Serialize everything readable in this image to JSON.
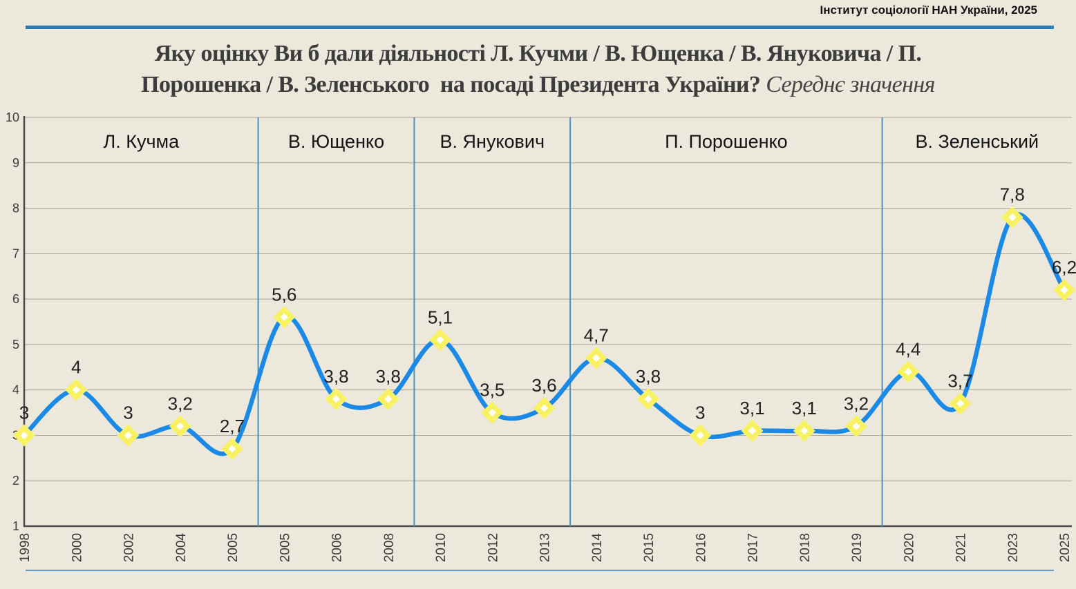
{
  "source": "Інститут соціології НАН України, 2025",
  "title": {
    "line1": "Яку оцінку Ви б дали діяльності Л. Кучми / В. Ющенка / В. Януковича / П.",
    "line2": "Порошенка / В. Зеленського  на посаді Президента України?",
    "note": "Середнє значення"
  },
  "colors": {
    "background": "#ece8dc",
    "accent_rule_top": "#2d7cb3",
    "accent_rule_bottom": "#5f9fc6",
    "section_divider": "#4a92c3",
    "gridline": "#a8a396",
    "axis": "#4a4a4a",
    "line": "#1b89e6",
    "marker_fill": "#f8f263",
    "marker_center": "#ffffff",
    "label_text": "#212121"
  },
  "chart_data": {
    "type": "line",
    "title": "Яку оцінку Ви б дали діяльності Л. Кучми / В. Ющенка / В. Януковича / П. Порошенка / В. Зеленського на посаді Президента України? Середнє значення",
    "xlabel": "",
    "ylabel": "",
    "x": [
      "1998",
      "2000",
      "2002",
      "2004",
      "2005",
      "2005",
      "2006",
      "2008",
      "2010",
      "2012",
      "2013",
      "2014",
      "2015",
      "2016",
      "2017",
      "2018",
      "2019",
      "2020",
      "2021",
      "2023",
      "2025"
    ],
    "values": [
      3,
      4,
      3,
      3.2,
      2.7,
      5.6,
      3.8,
      3.8,
      5.1,
      3.5,
      3.6,
      4.7,
      3.8,
      3,
      3.1,
      3.1,
      3.2,
      4.4,
      3.7,
      7.8,
      6.2
    ],
    "point_labels": [
      "3",
      "4",
      "3",
      "3,2",
      "2,7",
      "5,6",
      "3,8",
      "3,8",
      "5,1",
      "3,5",
      "3,6",
      "4,7",
      "3,8",
      "3",
      "3,1",
      "3,1",
      "3,2",
      "4,4",
      "3,7",
      "7,8",
      "6,2"
    ],
    "sections": [
      {
        "label": "Л. Кучма",
        "from": 0,
        "to": 4
      },
      {
        "label": "В. Ющенко",
        "from": 5,
        "to": 7
      },
      {
        "label": "В. Янукович",
        "from": 8,
        "to": 10
      },
      {
        "label": "П. Порошенко",
        "from": 11,
        "to": 16
      },
      {
        "label": "В. Зеленський",
        "from": 17,
        "to": 20
      }
    ],
    "ylim": [
      1,
      10
    ],
    "yticks": [
      1,
      2,
      3,
      4,
      5,
      6,
      7,
      8,
      9,
      10
    ],
    "grid": true,
    "legend": "none",
    "marker": "diamond-yellow",
    "line_smoothing": "spline"
  }
}
